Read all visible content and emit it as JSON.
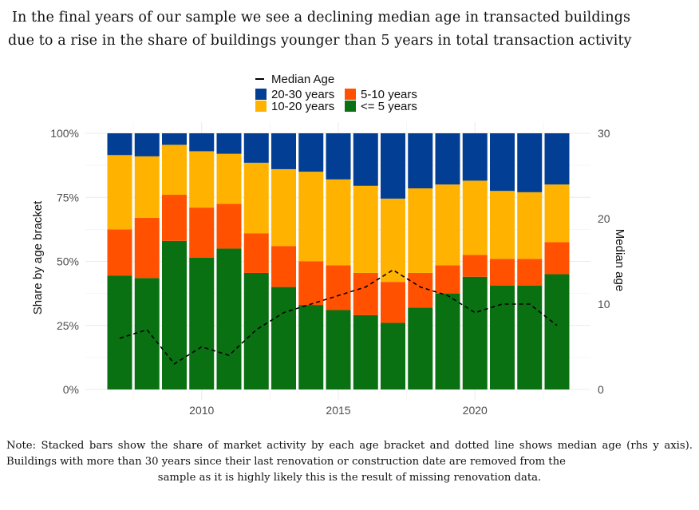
{
  "headline": {
    "line1": "In the final years of our sample we see a declining median age in transacted buildings",
    "line2": "due to a rise in the share of buildings younger than 5 years in total transaction activity"
  },
  "note": {
    "line1": "Note: Stacked bars show the share of market activity by each age bracket and dotted line shows median age (rhs",
    "line2": "y axis). Buildings with more than 30 years since their last renovation or construction date are removed from the",
    "line3": "sample as it is highly likely this is the result of missing renovation data."
  },
  "chart_data": {
    "type": "bar",
    "stacked": true,
    "categories": [
      2007,
      2008,
      2009,
      2010,
      2011,
      2012,
      2013,
      2014,
      2015,
      2016,
      2017,
      2018,
      2019,
      2020,
      2021,
      2022,
      2023
    ],
    "series": [
      {
        "name": "<= 5 years",
        "color": "#0a7112",
        "values": [
          44.5,
          43.5,
          58,
          51.5,
          55,
          45.5,
          40,
          33,
          31,
          29,
          26,
          32,
          37.5,
          44,
          40.5,
          40.5,
          45
        ]
      },
      {
        "name": "5-10 years",
        "color": "#ff5100",
        "values": [
          18,
          23.5,
          18,
          19.5,
          17.5,
          15.5,
          16,
          17,
          17.5,
          16.5,
          16,
          13.5,
          11,
          8.5,
          10.5,
          10.5,
          12.5
        ]
      },
      {
        "name": "10-20 years",
        "color": "#ffb300",
        "values": [
          29,
          24,
          19.5,
          22,
          19.5,
          27.5,
          30,
          35,
          33.5,
          34,
          32.5,
          33,
          31.5,
          29,
          26.5,
          26,
          22.5
        ]
      },
      {
        "name": "20-30 years",
        "color": "#023e93",
        "values": [
          8.5,
          9,
          4.5,
          7,
          8,
          11.5,
          14,
          15,
          18,
          20.5,
          25.5,
          21.5,
          20,
          18.5,
          22.5,
          23,
          20
        ]
      }
    ],
    "line_series": {
      "name": "Median Age",
      "axis": "right",
      "style": "dashed",
      "color": "#000000",
      "values": [
        6,
        7,
        3,
        5,
        4,
        7,
        9,
        10,
        11,
        12,
        14,
        12,
        11,
        9,
        10,
        10,
        7.5
      ]
    },
    "title": "",
    "xlabel": "",
    "ylabel": "Share by age bracket",
    "y2label": "Median age",
    "ylim": [
      0,
      100
    ],
    "y2lim": [
      0,
      30
    ],
    "yticks": [
      "0%",
      "25%",
      "50%",
      "75%",
      "100%"
    ],
    "y2ticks": [
      "0",
      "10",
      "20",
      "30"
    ],
    "xticks": [
      "2010",
      "2015",
      "2020"
    ],
    "legend": {
      "placement": "top",
      "line_label": "Median Age",
      "items": [
        "20-30 years",
        "5-10 years",
        "10-20 years",
        "<= 5 years"
      ]
    }
  }
}
